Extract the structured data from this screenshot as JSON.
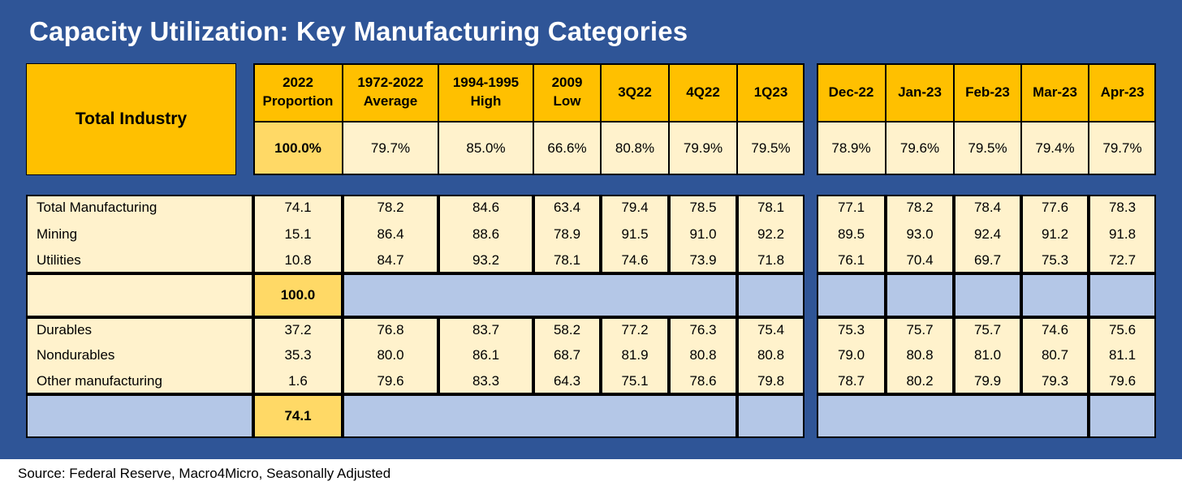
{
  "title": "Capacity Utilization: Key Manufacturing Categories",
  "source": "Source: Federal Reserve, Macro4Micro, Seasonally Adjusted",
  "colors": {
    "frame": "#2f5597",
    "header": "#ffc000",
    "cell": "#fff2cc",
    "highlight": "#ffd966",
    "blank": "#b4c7e7"
  },
  "chart_data": {
    "type": "table",
    "title": "Capacity Utilization: Key Manufacturing Categories",
    "columns": [
      "2022 Proportion",
      "1972-2022 Average",
      "1994-1995 High",
      "2009 Low",
      "3Q22",
      "4Q22",
      "1Q23",
      "Dec-22",
      "Jan-23",
      "Feb-23",
      "Mar-23",
      "Apr-23"
    ],
    "header": {
      "label": "Total Industry",
      "columns": [
        [
          "2022",
          "Proportion"
        ],
        [
          "1972-2022",
          "Average"
        ],
        [
          "1994-1995",
          "High"
        ],
        [
          "2009",
          "Low"
        ],
        [
          "3Q22"
        ],
        [
          "4Q22"
        ],
        [
          "1Q23"
        ],
        [
          "Dec-22"
        ],
        [
          "Jan-23"
        ],
        [
          "Feb-23"
        ],
        [
          "Mar-23"
        ],
        [
          "Apr-23"
        ]
      ]
    },
    "total_industry": [
      "100.0%",
      "79.7%",
      "85.0%",
      "66.6%",
      "80.8%",
      "79.9%",
      "79.5%",
      "78.9%",
      "79.6%",
      "79.5%",
      "79.4%",
      "79.7%"
    ],
    "rows": [
      {
        "label": "Total Manufacturing",
        "values": [
          "74.1",
          "78.2",
          "84.6",
          "63.4",
          "79.4",
          "78.5",
          "78.1",
          "77.1",
          "78.2",
          "78.4",
          "77.6",
          "78.3"
        ]
      },
      {
        "label": "Mining",
        "values": [
          "15.1",
          "86.4",
          "88.6",
          "78.9",
          "91.5",
          "91.0",
          "92.2",
          "89.5",
          "93.0",
          "92.4",
          "91.2",
          "91.8"
        ]
      },
      {
        "label": "Utilities",
        "values": [
          "10.8",
          "84.7",
          "93.2",
          "78.1",
          "74.6",
          "73.9",
          "71.8",
          "76.1",
          "70.4",
          "69.7",
          "75.3",
          "72.7"
        ]
      },
      {
        "label": "",
        "values": [
          "100.0"
        ]
      },
      {
        "label": "Durables",
        "values": [
          "37.2",
          "76.8",
          "83.7",
          "58.2",
          "77.2",
          "76.3",
          "75.4",
          "75.3",
          "75.7",
          "75.7",
          "74.6",
          "75.6"
        ]
      },
      {
        "label": "Nondurables",
        "values": [
          "35.3",
          "80.0",
          "86.1",
          "68.7",
          "81.9",
          "80.8",
          "80.8",
          "79.0",
          "80.8",
          "81.0",
          "80.7",
          "81.1"
        ]
      },
      {
        "label": "Other manufacturing",
        "values": [
          "1.6",
          "79.6",
          "83.3",
          "64.3",
          "75.1",
          "78.6",
          "79.8",
          "78.7",
          "80.2",
          "79.9",
          "79.3",
          "79.6"
        ]
      },
      {
        "label": "",
        "values": [
          "74.1"
        ]
      }
    ]
  }
}
